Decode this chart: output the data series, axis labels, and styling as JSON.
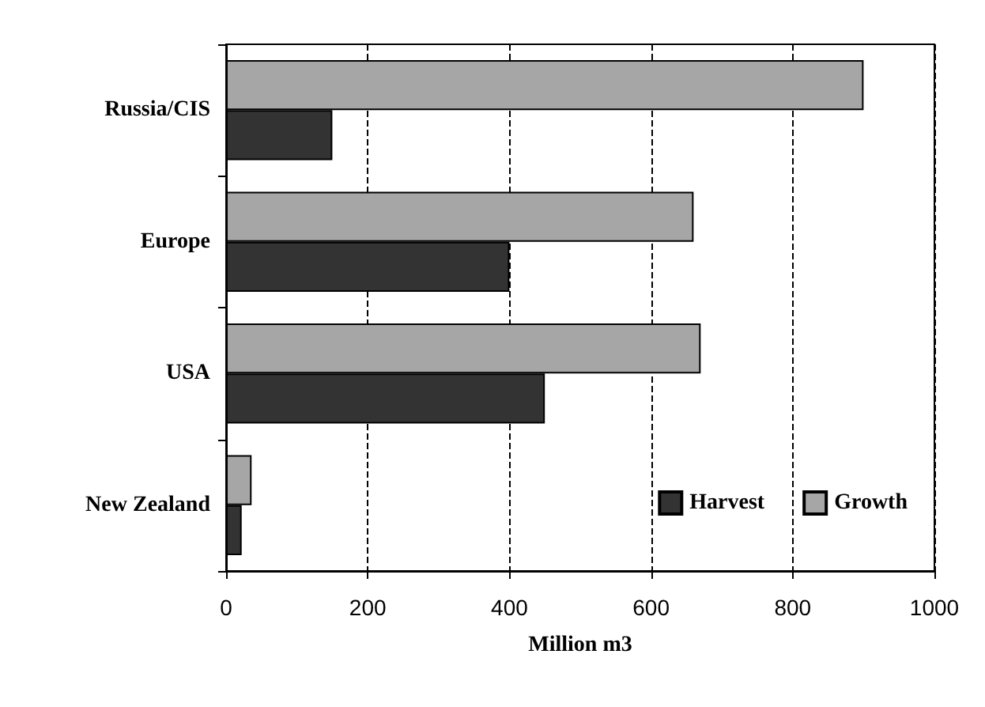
{
  "chart_data": {
    "type": "bar",
    "orientation": "horizontal",
    "categories": [
      "Russia/CIS",
      "Europe",
      "USA",
      "New Zealand"
    ],
    "series": [
      {
        "name": "Harvest",
        "color": "#333333",
        "values": [
          150,
          400,
          450,
          22
        ]
      },
      {
        "name": "Growth",
        "color": "#a6a6a6",
        "values": [
          900,
          660,
          670,
          36
        ]
      }
    ],
    "xlabel": "Million m3",
    "xlim": [
      0,
      1000
    ],
    "xticks": [
      0,
      200,
      400,
      600,
      800,
      1000
    ],
    "grid": "x",
    "legend": "bottom right"
  }
}
